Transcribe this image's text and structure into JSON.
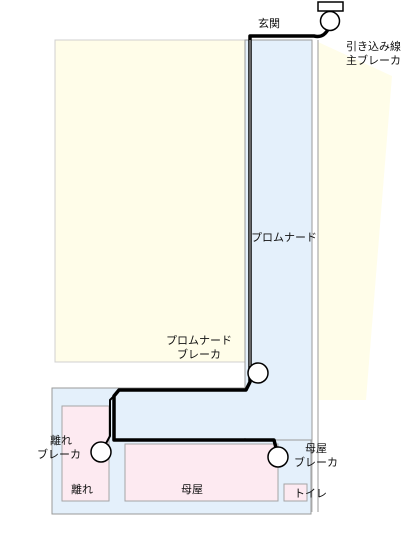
{
  "labels": {
    "entrance": "玄関",
    "service_breaker_line1": "引き込み線",
    "service_breaker_line2": "主ブレーカ",
    "promenade": "プロムナード",
    "promenade_breaker_line1": "プロムナード",
    "promenade_breaker_line2": "ブレーカ",
    "annex_breaker_line1": "離れ",
    "annex_breaker_line2": "ブレーカ",
    "main_house_breaker_line1": "母屋",
    "main_house_breaker_line2": "ブレーカ",
    "annex_room": "離れ",
    "main_house_room": "母屋",
    "toilet_room": "トイレ"
  },
  "colors": {
    "yard_fill": "#fffde9",
    "promenade_fill": "#e4f0fb",
    "room_fill": "#fdeaf1",
    "wall_stroke": "#9a9a9a",
    "cable": "#000000",
    "cable_highlight": "#ffffff"
  }
}
